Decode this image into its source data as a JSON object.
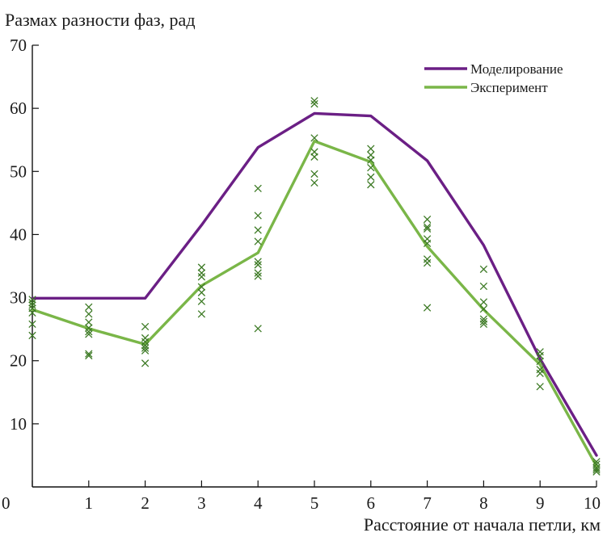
{
  "chart_data": {
    "type": "line",
    "title": "",
    "ylabel": "Размах разности фаз, рад",
    "xlabel": "Расстояние от начала петли, км",
    "xlim": [
      0,
      10
    ],
    "ylim": [
      0,
      70
    ],
    "x_ticks": [
      0,
      1,
      2,
      3,
      4,
      5,
      6,
      7,
      8,
      9,
      10
    ],
    "y_ticks": [
      10,
      20,
      30,
      40,
      50,
      60,
      70
    ],
    "grid": false,
    "legend_position": "top-right",
    "series": [
      {
        "name": "Моделирование",
        "color": "#6b1f85",
        "x": [
          0,
          1,
          2,
          3,
          4,
          5,
          6,
          7,
          8,
          9,
          10
        ],
        "y": [
          29.9,
          29.9,
          29.9,
          41.5,
          53.8,
          59.2,
          58.8,
          51.7,
          38.3,
          20.3,
          5.0
        ]
      },
      {
        "name": "Эксперимент",
        "color": "#7ab648",
        "x": [
          0,
          1,
          2,
          3,
          4,
          5,
          6,
          7,
          8,
          9,
          10
        ],
        "y": [
          28.1,
          25.1,
          22.6,
          31.9,
          37.1,
          54.8,
          51.5,
          38.1,
          28.1,
          19.4,
          3.3
        ]
      }
    ],
    "scatter": {
      "marker": "x",
      "color": "#3d7a25",
      "points": [
        [
          0,
          29.7
        ],
        [
          0,
          29.2
        ],
        [
          0,
          28.8
        ],
        [
          0,
          28.3
        ],
        [
          0,
          27.6
        ],
        [
          0,
          25.8
        ],
        [
          0,
          24.0
        ],
        [
          1,
          28.5
        ],
        [
          1,
          27.4
        ],
        [
          1,
          26.1
        ],
        [
          1,
          25.2
        ],
        [
          1,
          24.6
        ],
        [
          1,
          24.2
        ],
        [
          1,
          21.1
        ],
        [
          1,
          20.8
        ],
        [
          2,
          25.4
        ],
        [
          2,
          23.6
        ],
        [
          2,
          23.0
        ],
        [
          2,
          22.4
        ],
        [
          2,
          22.0
        ],
        [
          2,
          21.6
        ],
        [
          2,
          19.6
        ],
        [
          3,
          34.8
        ],
        [
          3,
          33.9
        ],
        [
          3,
          33.3
        ],
        [
          3,
          31.7
        ],
        [
          3,
          30.8
        ],
        [
          3,
          29.4
        ],
        [
          3,
          27.4
        ],
        [
          4,
          47.3
        ],
        [
          4,
          43.0
        ],
        [
          4,
          40.7
        ],
        [
          4,
          38.9
        ],
        [
          4,
          35.7
        ],
        [
          4,
          35.2
        ],
        [
          4,
          33.9
        ],
        [
          4,
          33.4
        ],
        [
          4,
          25.1
        ],
        [
          5,
          61.2
        ],
        [
          5,
          60.7
        ],
        [
          5,
          55.3
        ],
        [
          5,
          53.1
        ],
        [
          5,
          52.3
        ],
        [
          5,
          49.6
        ],
        [
          5,
          48.2
        ],
        [
          6,
          53.6
        ],
        [
          6,
          52.6
        ],
        [
          6,
          51.8
        ],
        [
          6,
          50.6
        ],
        [
          6,
          49.1
        ],
        [
          6,
          47.9
        ],
        [
          7,
          42.4
        ],
        [
          7,
          41.2
        ],
        [
          7,
          40.9
        ],
        [
          7,
          39.3
        ],
        [
          7,
          38.6
        ],
        [
          7,
          36.1
        ],
        [
          7,
          35.5
        ],
        [
          7,
          28.4
        ],
        [
          8,
          34.5
        ],
        [
          8,
          31.8
        ],
        [
          8,
          29.3
        ],
        [
          8,
          28.2
        ],
        [
          8,
          26.6
        ],
        [
          8,
          26.2
        ],
        [
          8,
          25.8
        ],
        [
          9,
          21.4
        ],
        [
          9,
          20.8
        ],
        [
          9,
          19.9
        ],
        [
          9,
          18.6
        ],
        [
          9,
          18.0
        ],
        [
          9,
          15.9
        ],
        [
          10,
          4.0
        ],
        [
          10,
          3.6
        ],
        [
          10,
          3.0
        ],
        [
          10,
          2.7
        ],
        [
          10,
          2.4
        ]
      ]
    }
  }
}
